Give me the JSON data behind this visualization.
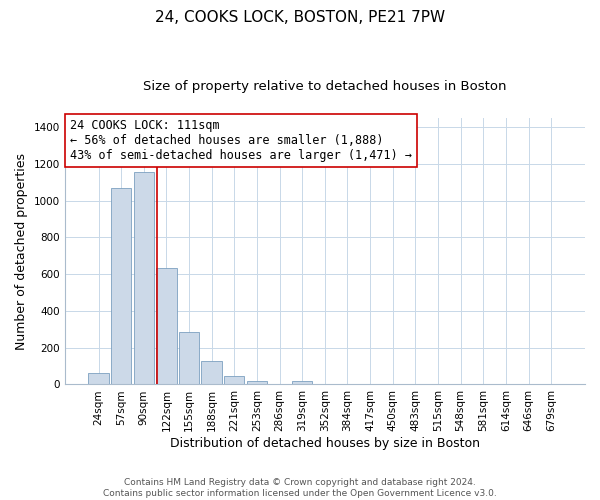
{
  "title": "24, COOKS LOCK, BOSTON, PE21 7PW",
  "subtitle": "Size of property relative to detached houses in Boston",
  "xlabel": "Distribution of detached houses by size in Boston",
  "ylabel": "Number of detached properties",
  "categories": [
    "24sqm",
    "57sqm",
    "90sqm",
    "122sqm",
    "155sqm",
    "188sqm",
    "221sqm",
    "253sqm",
    "286sqm",
    "319sqm",
    "352sqm",
    "384sqm",
    "417sqm",
    "450sqm",
    "483sqm",
    "515sqm",
    "548sqm",
    "581sqm",
    "614sqm",
    "646sqm",
    "679sqm"
  ],
  "values": [
    65,
    1070,
    1155,
    635,
    285,
    130,
    47,
    20,
    0,
    20,
    0,
    0,
    0,
    0,
    0,
    0,
    0,
    0,
    0,
    0,
    0
  ],
  "bar_color": "#ccd9e8",
  "bar_edge_color": "#7ca0c0",
  "vline_x_index": 2.57,
  "vline_color": "#cc0000",
  "annotation_line1": "24 COOKS LOCK: 111sqm",
  "annotation_line2": "← 56% of detached houses are smaller (1,888)",
  "annotation_line3": "43% of semi-detached houses are larger (1,471) →",
  "annotation_box_color": "#ffffff",
  "annotation_box_edge_color": "#cc0000",
  "ylim": [
    0,
    1450
  ],
  "yticks": [
    0,
    200,
    400,
    600,
    800,
    1000,
    1200,
    1400
  ],
  "footer_line1": "Contains HM Land Registry data © Crown copyright and database right 2024.",
  "footer_line2": "Contains public sector information licensed under the Open Government Licence v3.0.",
  "bg_color": "#ffffff",
  "grid_color": "#c8d8e8",
  "title_fontsize": 11,
  "subtitle_fontsize": 9.5,
  "axis_label_fontsize": 9,
  "tick_fontsize": 7.5,
  "annotation_fontsize": 8.5,
  "footer_fontsize": 6.5
}
